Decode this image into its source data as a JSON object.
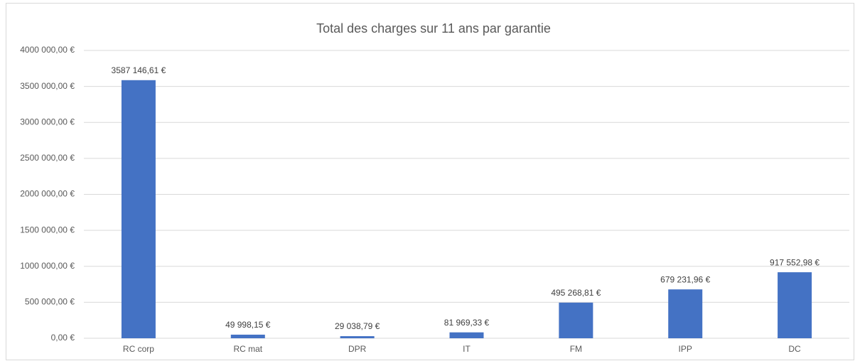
{
  "chart_data": {
    "type": "bar",
    "title": "Total des charges sur 11 ans par garantie",
    "categories": [
      "RC corp",
      "RC mat",
      "DPR",
      "IT",
      "FM",
      "IPP",
      "DC"
    ],
    "values": [
      3587146.61,
      49998.15,
      29038.79,
      81969.33,
      495268.81,
      679231.96,
      917552.98
    ],
    "value_labels": [
      "3587 146,61 €",
      "49 998,15 €",
      "29 038,79 €",
      "81 969,33 €",
      "495 268,81 €",
      "679 231,96 €",
      "917 552,98 €"
    ],
    "color": "#4472c4",
    "ylim": [
      0,
      4000000
    ],
    "yticks": [
      {
        "value": 0,
        "label": "0,00 €"
      },
      {
        "value": 500000,
        "label": "500 000,00 €"
      },
      {
        "value": 1000000,
        "label": "1000 000,00 €"
      },
      {
        "value": 1500000,
        "label": "1500 000,00 €"
      },
      {
        "value": 2000000,
        "label": "2000 000,00 €"
      },
      {
        "value": 2500000,
        "label": "2500 000,00 €"
      },
      {
        "value": 3000000,
        "label": "3000 000,00 €"
      },
      {
        "value": 3500000,
        "label": "3500 000,00 €"
      },
      {
        "value": 4000000,
        "label": "4000 000,00 €"
      }
    ],
    "grid": true
  }
}
